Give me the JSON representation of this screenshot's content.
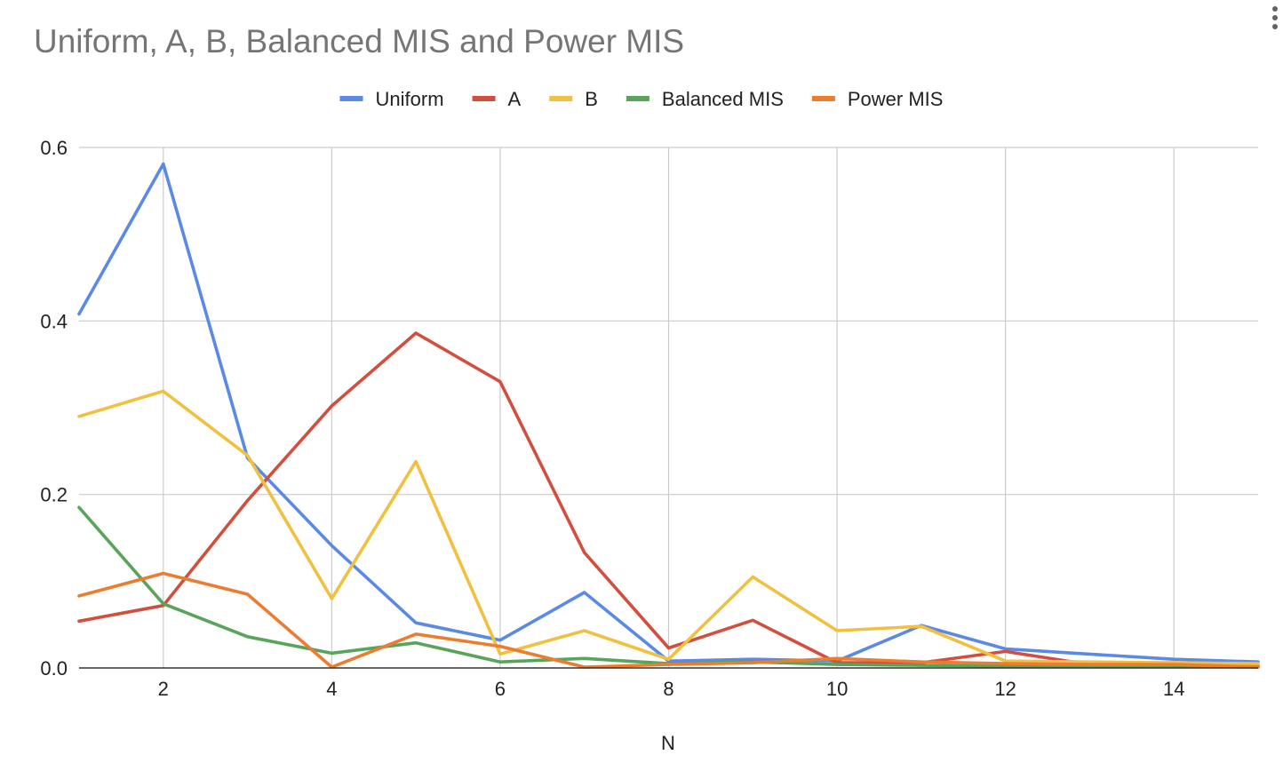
{
  "chart_data": {
    "type": "line",
    "title": "Uniform, A, B, Balanced MIS and Power MIS",
    "xlabel": "N",
    "ylabel": "",
    "x": [
      1,
      2,
      3,
      4,
      5,
      6,
      7,
      8,
      9,
      10,
      11,
      12,
      13,
      14,
      15
    ],
    "xlim": [
      1,
      15
    ],
    "ylim": [
      0,
      0.6
    ],
    "xticks": [
      "2",
      "4",
      "6",
      "8",
      "10",
      "12",
      "14"
    ],
    "xtick_values": [
      2,
      4,
      6,
      8,
      10,
      12,
      14
    ],
    "yticks": [
      "0.0",
      "0.2",
      "0.4",
      "0.6"
    ],
    "ytick_values": [
      0,
      0.2,
      0.4,
      0.6
    ],
    "grid": true,
    "legend_position": "top",
    "series": [
      {
        "name": "Uniform",
        "color": "#5a8ae6",
        "values": [
          0.408,
          0.581,
          0.242,
          0.141,
          0.052,
          0.032,
          0.087,
          0.008,
          0.01,
          0.008,
          0.049,
          0.022,
          0.016,
          0.01,
          0.007
        ]
      },
      {
        "name": "A",
        "color": "#d24f3e",
        "values": [
          0.054,
          0.072,
          0.193,
          0.302,
          0.386,
          0.33,
          0.133,
          0.023,
          0.055,
          0.006,
          0.006,
          0.019,
          0.004,
          0.006,
          0.002
        ]
      },
      {
        "name": "B",
        "color": "#f1c040",
        "values": [
          0.29,
          0.319,
          0.245,
          0.08,
          0.238,
          0.016,
          0.043,
          0.01,
          0.105,
          0.043,
          0.048,
          0.008,
          0.007,
          0.006,
          0.005
        ]
      },
      {
        "name": "Balanced MIS",
        "color": "#57a55a",
        "values": [
          0.185,
          0.074,
          0.036,
          0.017,
          0.029,
          0.007,
          0.011,
          0.005,
          0.007,
          0.004,
          0.003,
          0.002,
          0.002,
          0.002,
          0.001
        ]
      },
      {
        "name": "Power MIS",
        "color": "#ec7c30",
        "values": [
          0.083,
          0.109,
          0.085,
          0.001,
          0.039,
          0.025,
          0.001,
          0.004,
          0.006,
          0.011,
          0.007,
          0.005,
          0.004,
          0.004,
          0.001
        ]
      }
    ]
  }
}
